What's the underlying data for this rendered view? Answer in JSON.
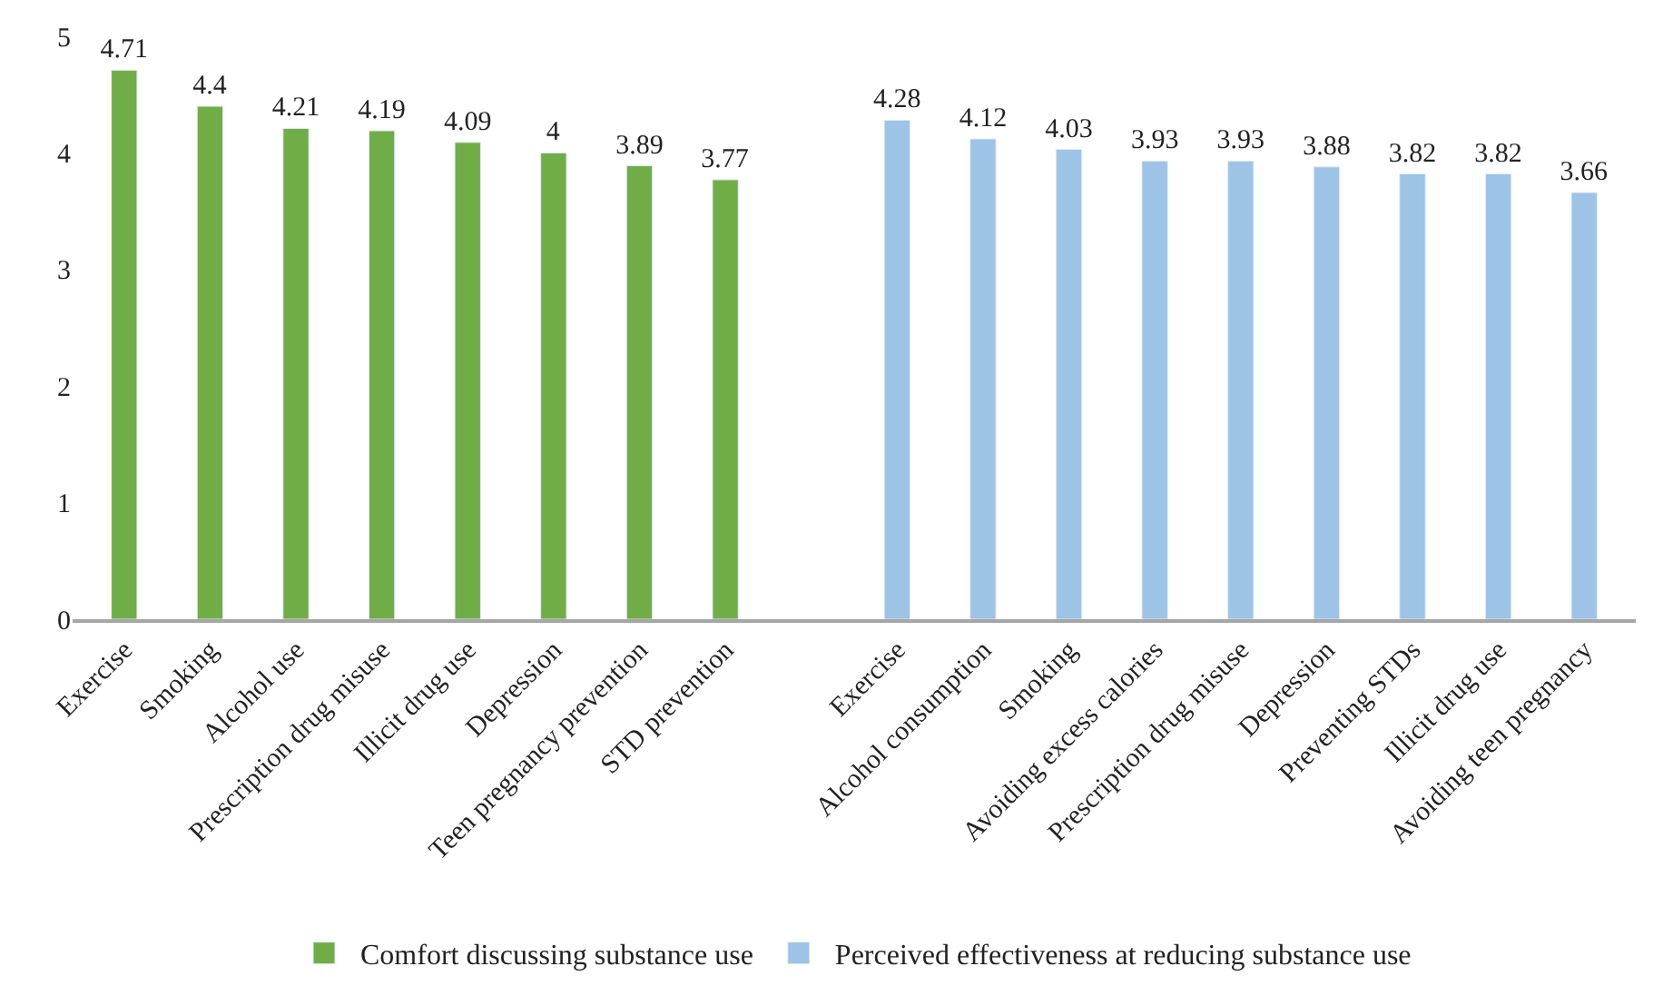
{
  "chart_data": {
    "type": "bar",
    "categories": [
      "Exercise",
      "Smoking",
      "Alcohol use",
      "Prescription drug misuse",
      "Illicit drug use",
      "Depression",
      "Teen pregnancy prevention",
      "STD prevention",
      null,
      "Exercise",
      "Alcohol consumption",
      "Smoking",
      "Avoiding excess calories",
      "Prescription drug misuse",
      "Depression",
      "Preventing STDs",
      "Illicit drug use",
      "Avoiding teen pregnancy"
    ],
    "series": [
      {
        "name": "Comfort discussing substance use",
        "color": "#70ad47",
        "values": [
          4.71,
          4.4,
          4.21,
          4.19,
          4.09,
          4,
          3.89,
          3.77,
          null,
          null,
          null,
          null,
          null,
          null,
          null,
          null,
          null,
          null
        ]
      },
      {
        "name": "Perceived effectiveness at reducing substance use",
        "color": "#9dc3e6",
        "values": [
          null,
          null,
          null,
          null,
          null,
          null,
          null,
          null,
          null,
          4.28,
          4.12,
          4.03,
          3.93,
          3.93,
          3.88,
          3.82,
          3.82,
          3.66
        ]
      }
    ],
    "ylim": [
      0,
      5
    ],
    "yticks": [
      0,
      1,
      2,
      3,
      4,
      5
    ],
    "legend": "bottom",
    "data_labels": true
  }
}
